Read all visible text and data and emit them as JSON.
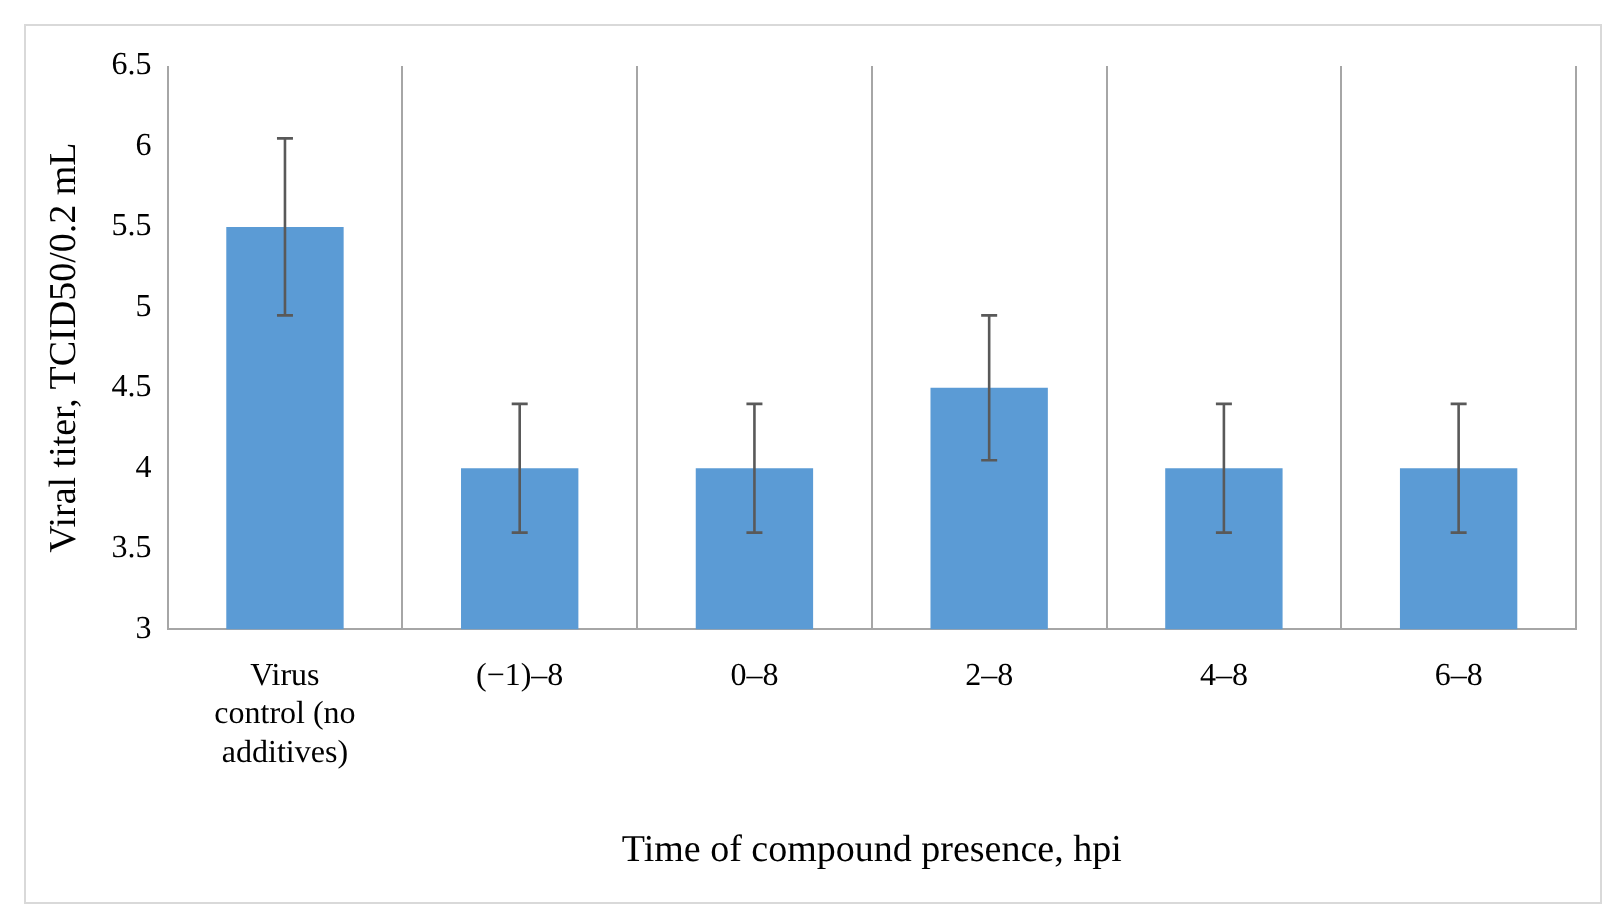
{
  "chart_data": {
    "type": "bar",
    "xlabel": "Time of compound presence, hpi",
    "ylabel": "Viral titer, TCID50/0.2 mL",
    "categories": [
      "Virus control (no additives)",
      "(−1)–8",
      "0–8",
      "2–8",
      "4–8",
      "6–8"
    ],
    "values": [
      5.5,
      4,
      4,
      4.5,
      4,
      4
    ],
    "errors": [
      0.55,
      0.4,
      0.4,
      0.45,
      0.4,
      0.4
    ],
    "color": "#5b9bd5",
    "ylim": [
      3,
      6.5
    ],
    "yticks": [
      3,
      3.5,
      4,
      4.5,
      5,
      5.5,
      6,
      6.5
    ],
    "grid": "x",
    "legend": false
  }
}
